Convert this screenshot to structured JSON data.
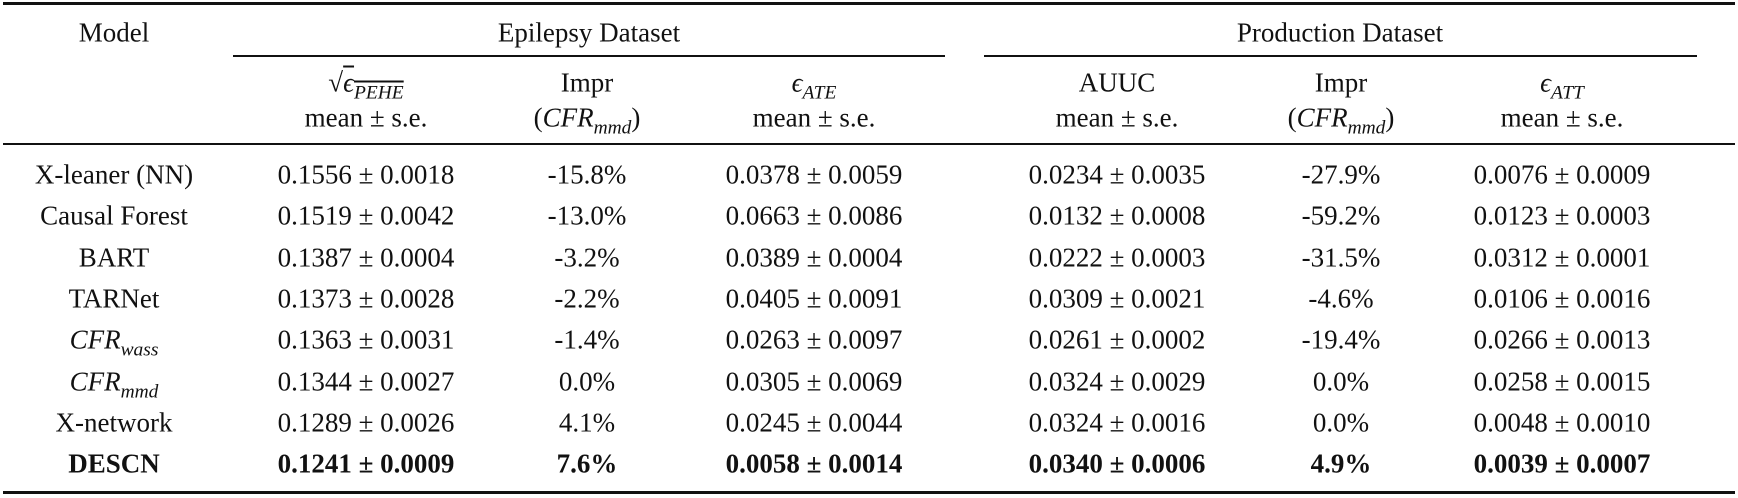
{
  "table": {
    "header": {
      "model": "Model",
      "groups": [
        {
          "title": "Epilepsy Dataset",
          "columns": [
            {
              "metric": {
                "radical": "√",
                "symbol": "ϵ",
                "sub": "PEHE"
              },
              "stat": "mean ± s.e."
            },
            {
              "metric": "Impr",
              "stat": {
                "open": "(",
                "symbol": "CFR",
                "sub": "mmd",
                "close": ")"
              }
            },
            {
              "metric": {
                "symbol": "ϵ",
                "sub": "ATE"
              },
              "stat": "mean ± s.e."
            }
          ]
        },
        {
          "title": "Production Dataset",
          "columns": [
            {
              "metric": "AUUC",
              "stat": "mean ± s.e."
            },
            {
              "metric": "Impr",
              "stat": {
                "open": "(",
                "symbol": "CFR",
                "sub": "mmd",
                "close": ")"
              }
            },
            {
              "metric": {
                "symbol": "ϵ",
                "sub": "ATT"
              },
              "stat": "mean ± s.e."
            }
          ]
        }
      ]
    },
    "rows": [
      {
        "model": "X-leaner (NN)",
        "cells": [
          "0.1556 ± 0.0018",
          "-15.8%",
          "0.0378 ± 0.0059",
          "0.0234 ± 0.0035",
          "-27.9%",
          "0.0076 ± 0.0009"
        ]
      },
      {
        "model": "Causal Forest",
        "cells": [
          "0.1519 ± 0.0042",
          "-13.0%",
          "0.0663 ± 0.0086",
          "0.0132 ± 0.0008",
          "-59.2%",
          "0.0123 ± 0.0003"
        ]
      },
      {
        "model": "BART",
        "cells": [
          "0.1387 ± 0.0004",
          "-3.2%",
          "0.0389 ± 0.0004",
          "0.0222 ± 0.0003",
          "-31.5%",
          "0.0312 ± 0.0001"
        ]
      },
      {
        "model": "TARNet",
        "cells": [
          "0.1373 ± 0.0028",
          "-2.2%",
          "0.0405 ± 0.0091",
          "0.0309 ± 0.0021",
          "-4.6%",
          "0.0106 ± 0.0016"
        ]
      },
      {
        "model": {
          "symbol": "CFR",
          "sub": "wass"
        },
        "cells": [
          "0.1363 ± 0.0031",
          "-1.4%",
          "0.0263 ± 0.0097",
          "0.0261 ± 0.0002",
          "-19.4%",
          "0.0266 ± 0.0013"
        ]
      },
      {
        "model": {
          "symbol": "CFR",
          "sub": "mmd"
        },
        "cells": [
          "0.1344 ± 0.0027",
          "0.0%",
          "0.0305 ± 0.0069",
          "0.0324 ± 0.0029",
          "0.0%",
          "0.0258 ± 0.0015"
        ]
      },
      {
        "model": "X-network",
        "cells": [
          "0.1289 ± 0.0026",
          "4.1%",
          "0.0245 ± 0.0044",
          "0.0324 ± 0.0016",
          "0.0%",
          "0.0048 ± 0.0010"
        ]
      },
      {
        "model": "DESCN",
        "bold": true,
        "cells": [
          "0.1241 ± 0.0009",
          "7.6%",
          "0.0058 ± 0.0014",
          "0.0340 ± 0.0006",
          "4.9%",
          "0.0039 ± 0.0007"
        ]
      }
    ]
  }
}
